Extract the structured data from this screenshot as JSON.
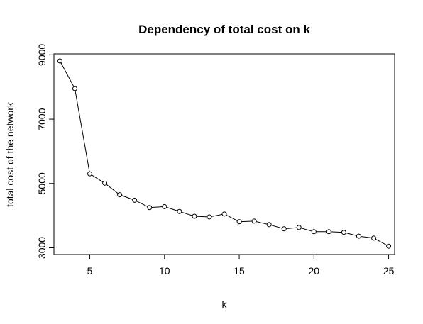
{
  "chart_data": {
    "type": "line",
    "title": "Dependency of total cost on k",
    "xlabel": "k",
    "ylabel": "total cost of the network",
    "xlim": [
      2.6,
      25.4
    ],
    "ylim": [
      2790,
      9030
    ],
    "x_ticks": [
      5,
      10,
      15,
      20,
      25
    ],
    "y_ticks": [
      3000,
      5000,
      7000,
      9000
    ],
    "x_tick_labels": [
      "5",
      "10",
      "15",
      "20",
      "25"
    ],
    "y_tick_labels": [
      "3000",
      "5000",
      "7000",
      "9000"
    ],
    "grid": false,
    "legend": "none",
    "series": [
      {
        "x": [
          3,
          4,
          5,
          6,
          7,
          8,
          9,
          10,
          11,
          12,
          13,
          14,
          15,
          16,
          17,
          18,
          19,
          20,
          21,
          22,
          23,
          24,
          25
        ],
        "values": [
          8810,
          7950,
          5300,
          5010,
          4650,
          4480,
          4250,
          4280,
          4130,
          3980,
          3960,
          4050,
          3810,
          3830,
          3720,
          3590,
          3630,
          3500,
          3500,
          3480,
          3360,
          3300,
          3050
        ]
      }
    ]
  }
}
